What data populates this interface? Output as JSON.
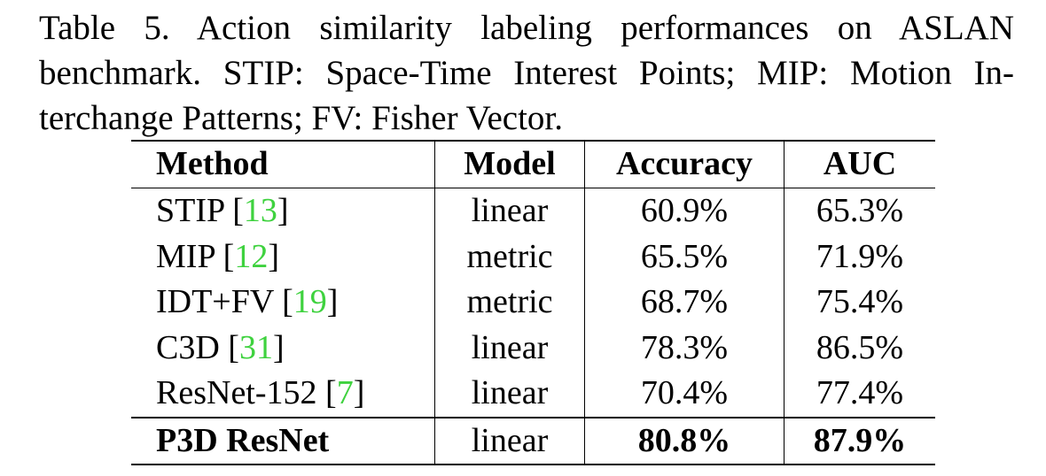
{
  "caption": {
    "lines": [
      "Table 5. Action similarity labeling performances on ASLAN",
      "benchmark. STIP: Space-Time Interest Points; MIP: Motion In-",
      "terchange Patterns; FV: Fisher Vector."
    ]
  },
  "table": {
    "headers": [
      "Method",
      "Model",
      "Accuracy",
      "AUC"
    ],
    "rows": [
      {
        "method": "STIP",
        "open": "[",
        "ref": "13",
        "close": "]",
        "model": "linear",
        "accuracy": "60.9%",
        "auc": "65.3%"
      },
      {
        "method": "MIP",
        "open": "[",
        "ref": "12",
        "close": "]",
        "model": "metric",
        "accuracy": "65.5%",
        "auc": "71.9%"
      },
      {
        "method": "IDT+FV",
        "open": "[",
        "ref": "19",
        "close": "]",
        "model": "metric",
        "accuracy": "68.7%",
        "auc": "75.4%"
      },
      {
        "method": "C3D",
        "open": "[",
        "ref": "31",
        "close": "]",
        "model": "linear",
        "accuracy": "78.3%",
        "auc": "86.5%"
      },
      {
        "method": "ResNet-152",
        "open": "[",
        "ref": "7",
        "close": "]",
        "model": "linear",
        "accuracy": "70.4%",
        "auc": "77.4%"
      }
    ],
    "final_row": {
      "method": "P3D ResNet",
      "model": "linear",
      "accuracy": "80.8%",
      "auc": "87.9%"
    },
    "ref_color": "#3fd23f"
  }
}
